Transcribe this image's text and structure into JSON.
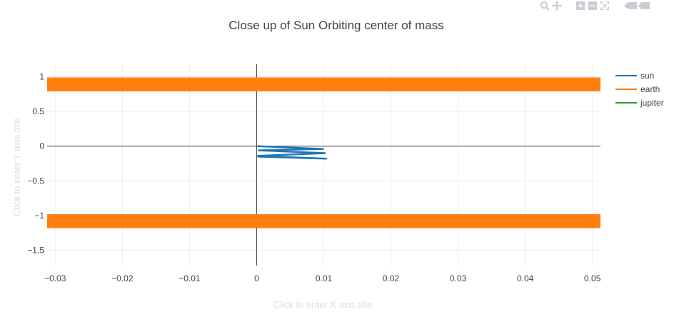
{
  "chart_data": {
    "type": "line",
    "title": "Close up of Sun Orbiting center of mass",
    "xlabel": "Click to enter X axis title",
    "ylabel": "Click to enter Y axis title",
    "xlim": [
      -0.0312,
      0.0512
    ],
    "ylim": [
      -1.72,
      1.18
    ],
    "xticks": [
      -0.03,
      -0.02,
      -0.01,
      0,
      0.01,
      0.02,
      0.03,
      0.04,
      0.05
    ],
    "xtick_labels": [
      "−0.03",
      "−0.02",
      "−0.01",
      "0",
      "0.01",
      "0.02",
      "0.03",
      "0.04",
      "0.05"
    ],
    "yticks": [
      1,
      0.5,
      0,
      -0.5,
      -1,
      -1.5
    ],
    "ytick_labels": [
      "1",
      "0.5",
      "0",
      "−0.5",
      "−1",
      "−1.5"
    ],
    "grid": true,
    "legend_position": "top-right",
    "series": [
      {
        "name": "sun",
        "color": "#1f77b4",
        "width": 2.5,
        "x": [
          0.0001,
          0.0099,
          0.0003,
          0.0102,
          0.0001,
          0.0104,
          0.0002
        ],
        "y": [
          -0.0,
          -0.04,
          -0.06,
          -0.1,
          -0.14,
          -0.18,
          -0.15
        ]
      },
      {
        "name": "earth",
        "color": "#ff7f0e",
        "bands": [
          {
            "y_from": 0.79,
            "y_to": 0.99
          },
          {
            "y_from": -1.18,
            "y_to": -0.98
          }
        ]
      },
      {
        "name": "jupiter",
        "color": "#2ca02c",
        "x": [],
        "y": []
      }
    ]
  },
  "modebar": {
    "buttons": [
      "zoom-icon",
      "pan-icon",
      "zoom-in-icon",
      "zoom-out-icon",
      "autoscale-icon",
      "hover-compare-icon"
    ]
  }
}
